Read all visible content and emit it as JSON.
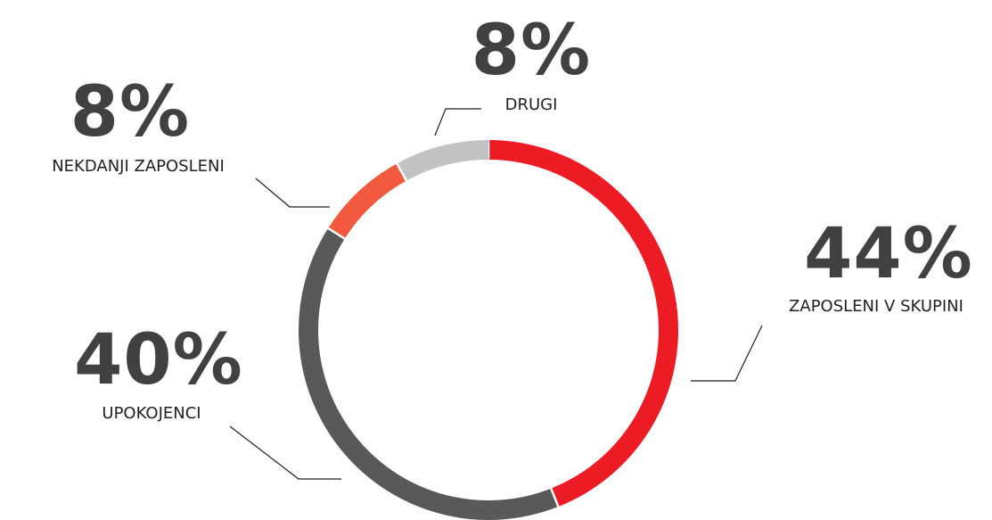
{
  "chart_data": {
    "type": "pie",
    "donut": true,
    "categories": [
      "ZAPOSLENI V SKUPINI",
      "UPOKOJENCI",
      "NEKDANJI ZAPOSLENI",
      "DRUGI"
    ],
    "values": [
      44,
      40,
      8,
      8
    ],
    "value_labels": [
      "44%",
      "40%",
      "8%",
      "8%"
    ],
    "colors": [
      "#ed1c24",
      "#58595b",
      "#f15a3e",
      "#c2c2c4"
    ]
  }
}
